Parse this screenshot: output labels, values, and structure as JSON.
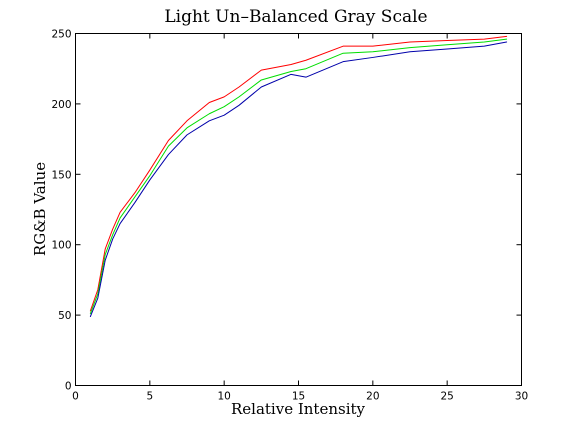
{
  "chart_data": {
    "type": "line",
    "title": "Light Un–Balanced Gray Scale",
    "xlabel": "Relative Intensity",
    "ylabel": "RG&B Value",
    "xlim": [
      0,
      30
    ],
    "ylim": [
      0,
      250
    ],
    "xticks": [
      0,
      5,
      10,
      15,
      20,
      25,
      30
    ],
    "yticks": [
      0,
      50,
      100,
      150,
      200,
      250
    ],
    "grid": false,
    "x": [
      1,
      1.5,
      2,
      2.5,
      3,
      4,
      5,
      6.25,
      7.5,
      9,
      10,
      11,
      12.5,
      14.5,
      15.5,
      18,
      20,
      22.5,
      25,
      27.5,
      29
    ],
    "series": [
      {
        "color": "#ff0000",
        "values": [
          53,
          68,
          97,
          111,
          123,
          137,
          153,
          174,
          188,
          201,
          205,
          212,
          224,
          228,
          231,
          241,
          241,
          244,
          245,
          246,
          248
        ]
      },
      {
        "color": "#00dd00",
        "values": [
          51,
          65,
          93,
          107,
          119,
          134,
          149,
          170,
          183,
          193,
          198,
          205,
          217,
          223,
          225,
          236,
          237,
          240,
          242,
          244,
          246
        ]
      },
      {
        "color": "#0000aa",
        "values": [
          49,
          62,
          89,
          104,
          115,
          130,
          146,
          164,
          178,
          188,
          192,
          199,
          212,
          221,
          219,
          230,
          233,
          237,
          239,
          241,
          244
        ]
      }
    ]
  }
}
